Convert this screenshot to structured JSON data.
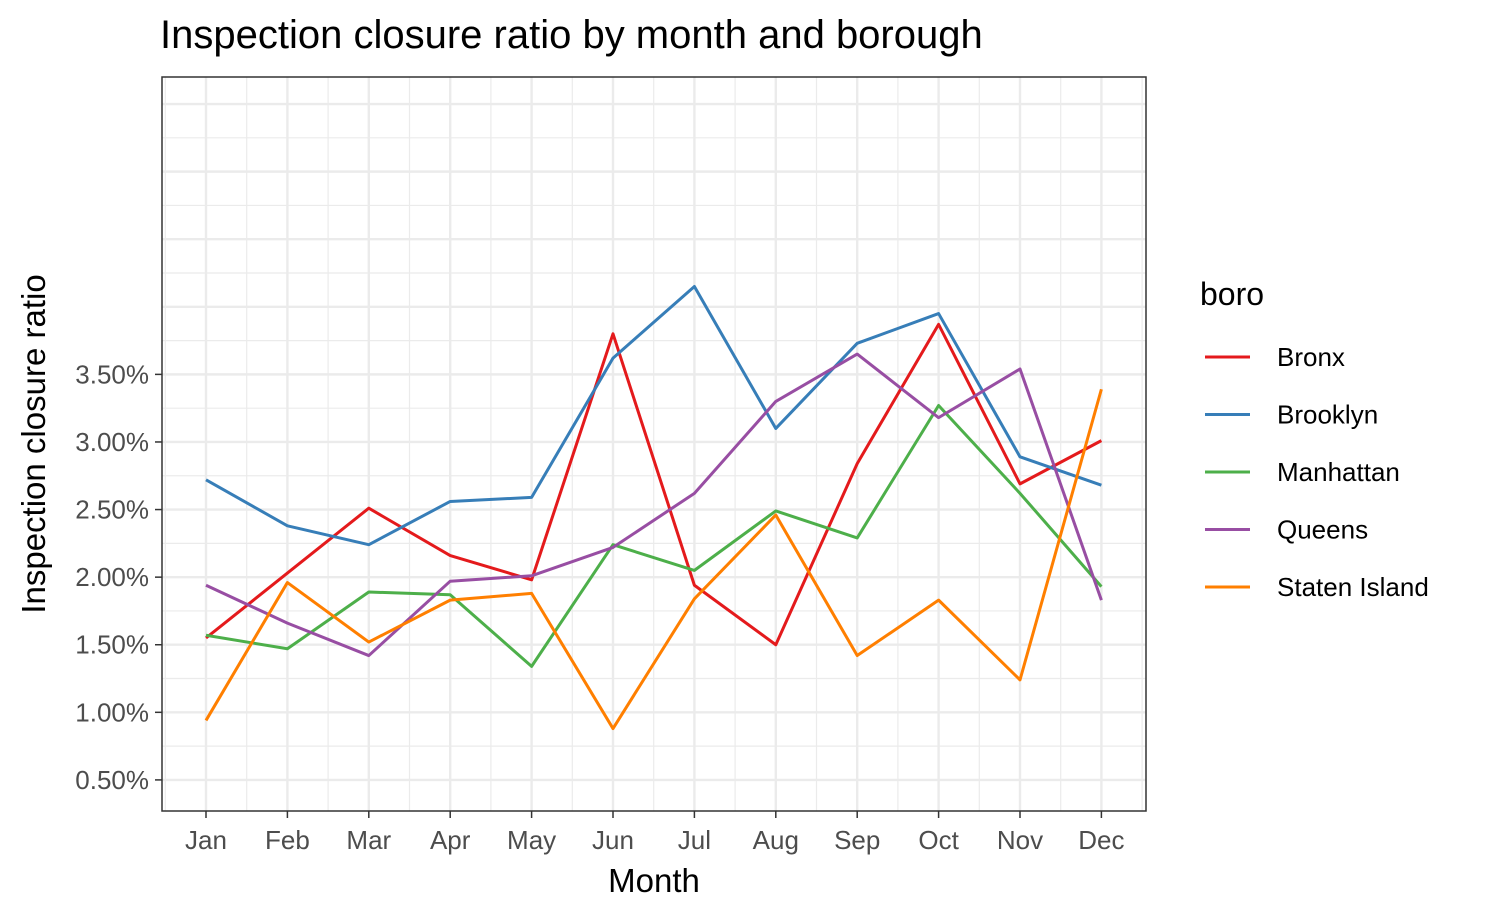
{
  "chart_data": {
    "type": "line",
    "title": "Inspection closure ratio by month and borough",
    "xlabel": "Month",
    "ylabel": "Inspection closure ratio",
    "categories": [
      "Jan",
      "Feb",
      "Mar",
      "Apr",
      "May",
      "Jun",
      "Jul",
      "Aug",
      "Sep",
      "Oct",
      "Nov",
      "Dec"
    ],
    "y_ticks": [
      0.005,
      0.01,
      0.015,
      0.02,
      0.025,
      0.03,
      0.035
    ],
    "y_tick_labels": [
      "0.50%",
      "1.00%",
      "1.50%",
      "2.00%",
      "2.50%",
      "3.00%",
      "3.50%"
    ],
    "ylim": [
      0.0027,
      0.057
    ],
    "grid": true,
    "legend": {
      "title": "boro",
      "placement": "right"
    },
    "series": [
      {
        "name": "Bronx",
        "color": "#E41A1C",
        "values": [
          0.0155,
          0.0203,
          0.0251,
          0.0216,
          0.0198,
          0.038,
          0.0194,
          0.015,
          0.0284,
          0.0387,
          0.0269,
          0.0301
        ]
      },
      {
        "name": "Brooklyn",
        "color": "#377EB8",
        "values": [
          0.0272,
          0.0238,
          0.0224,
          0.0256,
          0.0259,
          0.0362,
          0.0415,
          0.031,
          0.0373,
          0.0395,
          0.0289,
          0.0268
        ]
      },
      {
        "name": "Manhattan",
        "color": "#4DAF4A",
        "values": [
          0.0157,
          0.0147,
          0.0189,
          0.0187,
          0.0134,
          0.0224,
          0.0205,
          0.0249,
          0.0229,
          0.0327,
          0.0262,
          0.0193
        ]
      },
      {
        "name": "Queens",
        "color": "#984EA3",
        "values": [
          0.0194,
          0.0166,
          0.0142,
          0.0197,
          0.0201,
          0.0222,
          0.0262,
          0.033,
          0.0365,
          0.0318,
          0.0354,
          0.0183
        ]
      },
      {
        "name": "Staten Island",
        "color": "#FF7F00",
        "values": [
          0.0094,
          0.0196,
          0.0152,
          0.0183,
          0.0188,
          0.0088,
          0.0184,
          0.0246,
          0.0142,
          0.0183,
          0.0124,
          0.0339
        ]
      }
    ]
  }
}
